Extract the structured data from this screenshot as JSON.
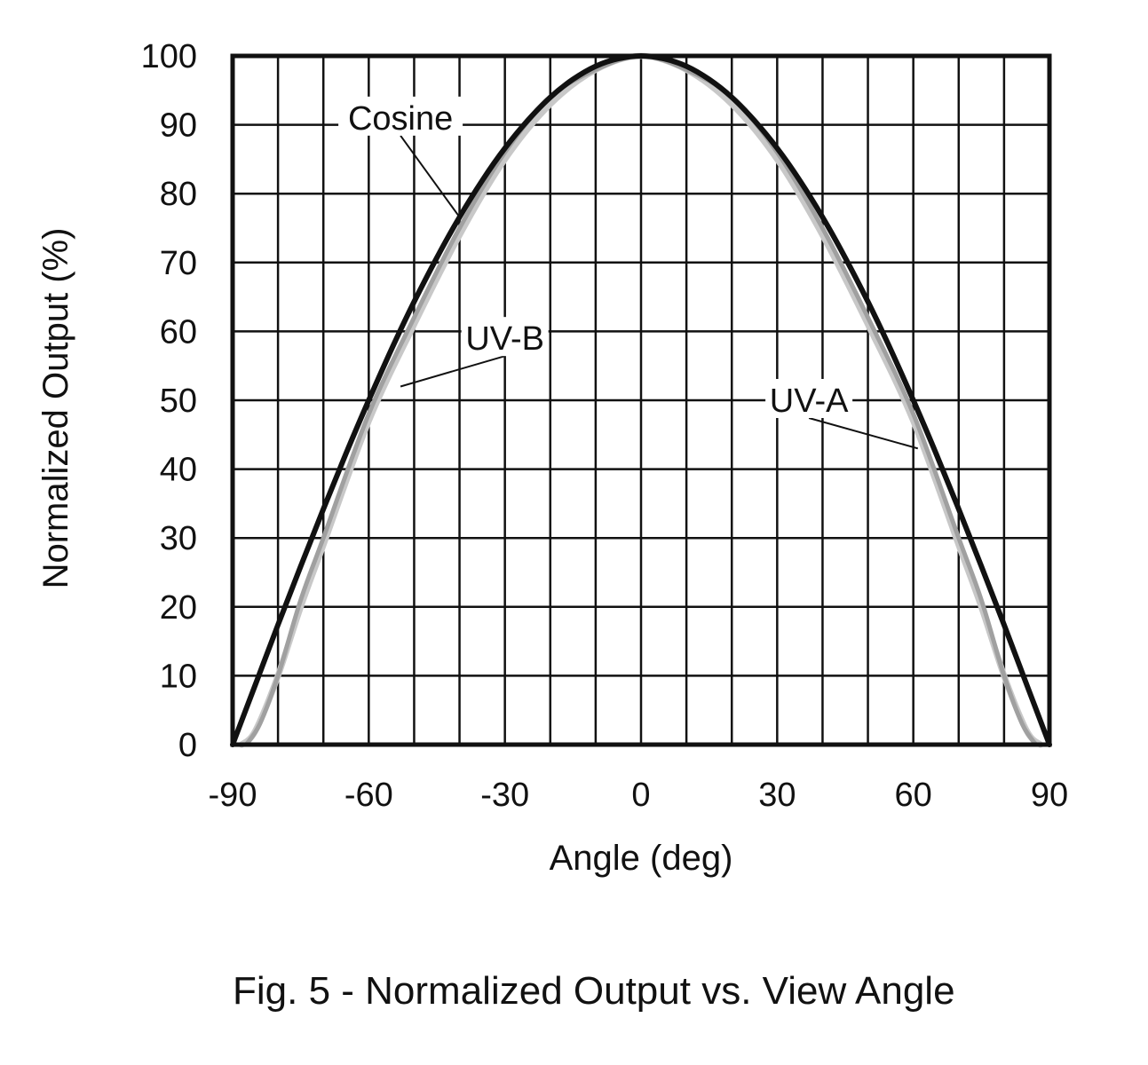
{
  "chart_data": {
    "type": "line",
    "title": "",
    "xlabel": "Angle (deg)",
    "ylabel": "Normalized Output (%)",
    "xlim": [
      -90,
      90
    ],
    "ylim": [
      0,
      100
    ],
    "x_ticks": [
      "-90",
      "-60",
      "-30",
      "0",
      "30",
      "60",
      "90"
    ],
    "y_ticks": [
      "0",
      "10",
      "20",
      "30",
      "40",
      "50",
      "60",
      "70",
      "80",
      "90",
      "100"
    ],
    "x_minor_step": 10,
    "y_grid_step": 10,
    "grid": true,
    "series": [
      {
        "name": "UV-B",
        "color": "#c8c8c8",
        "x": [
          -88,
          -85,
          -80,
          -75,
          -70,
          -60,
          -50,
          -40,
          -30,
          -20,
          -10,
          0,
          10,
          20,
          30,
          40,
          50,
          60,
          70,
          75,
          80,
          85,
          88
        ],
        "y": [
          0,
          2,
          10,
          20,
          29,
          47,
          61,
          74,
          85,
          93,
          98,
          100,
          98,
          93,
          85,
          74,
          61,
          47,
          29,
          20,
          10,
          2,
          0
        ]
      },
      {
        "name": "UV-A",
        "color": "#a0a0a0",
        "x": [
          -87,
          -84,
          -80,
          -75,
          -70,
          -60,
          -50,
          -40,
          -30,
          -20,
          -10,
          0,
          10,
          20,
          30,
          40,
          50,
          60,
          70,
          75,
          80,
          84,
          87
        ],
        "y": [
          0,
          3,
          10,
          21,
          30,
          48,
          62,
          75,
          86,
          94,
          98,
          100,
          98,
          94,
          86,
          75,
          62,
          48,
          30,
          21,
          10,
          3,
          0
        ]
      },
      {
        "name": "Cosine",
        "color": "#111111",
        "x": [
          -90,
          -85,
          -80,
          -75,
          -70,
          -65,
          -60,
          -55,
          -50,
          -45,
          -40,
          -35,
          -30,
          -25,
          -20,
          -15,
          -10,
          -5,
          0,
          5,
          10,
          15,
          20,
          25,
          30,
          35,
          40,
          45,
          50,
          55,
          60,
          65,
          70,
          75,
          80,
          85,
          90
        ],
        "y": [
          0,
          8.7,
          17.4,
          25.9,
          34.2,
          42.3,
          50,
          57.4,
          64.3,
          70.7,
          76.6,
          81.9,
          86.6,
          90.6,
          94,
          96.6,
          98.5,
          99.6,
          100,
          99.6,
          98.5,
          96.6,
          94,
          90.6,
          86.6,
          81.9,
          76.6,
          70.7,
          64.3,
          57.4,
          50,
          42.3,
          34.2,
          25.9,
          17.4,
          8.7,
          0
        ]
      }
    ],
    "annotations": [
      {
        "text": "Cosine",
        "target_series": "Cosine",
        "label_x": -53,
        "label_y": 91,
        "point_x": -40,
        "point_y": 76.6
      },
      {
        "text": "UV-B",
        "target_series": "UV-B",
        "label_x": -30,
        "label_y": 59,
        "point_x": -53,
        "point_y": 52
      },
      {
        "text": "UV-A",
        "target_series": "UV-A",
        "label_x": 37,
        "label_y": 50,
        "point_x": 61,
        "point_y": 43
      }
    ],
    "caption": "Fig. 5 - Normalized Output vs. View Angle"
  }
}
